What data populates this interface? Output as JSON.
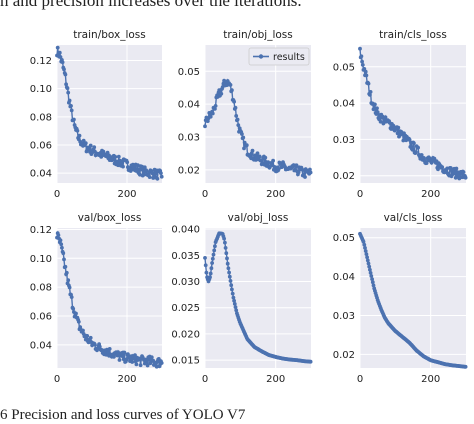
{
  "doc": {
    "top_text": "n and precision increases over the iterations.",
    "bottom_text": "6 Precision and loss curves of YOLO V7"
  },
  "colors": {
    "panel_bg": "#eaeaf2",
    "grid": "#ffffff",
    "series": "#4c72b0",
    "text": "#222222"
  },
  "chart_data": [
    {
      "type": "line",
      "title": "train/box_loss",
      "xlim": [
        0,
        300
      ],
      "ylim": [
        0.033,
        0.131
      ],
      "xticks": [
        0,
        200
      ],
      "yticks": [
        0.04,
        0.06,
        0.08,
        0.1,
        0.12
      ],
      "ytick_labels": [
        "0.04",
        "0.06",
        "0.08",
        "0.10",
        "0.12"
      ],
      "legend": null,
      "series": [
        {
          "noisy": true,
          "x": [
            0,
            8,
            16,
            24,
            32,
            40,
            50,
            60,
            70,
            80,
            95,
            110,
            130,
            150,
            170,
            190,
            210,
            230,
            250,
            270,
            290,
            299
          ],
          "y": [
            0.127,
            0.124,
            0.117,
            0.108,
            0.096,
            0.085,
            0.073,
            0.066,
            0.062,
            0.059,
            0.057,
            0.055,
            0.053,
            0.051,
            0.049,
            0.047,
            0.045,
            0.043,
            0.041,
            0.04,
            0.039,
            0.038
          ]
        }
      ]
    },
    {
      "type": "line",
      "title": "train/obj_loss",
      "xlim": [
        0,
        300
      ],
      "ylim": [
        0.016,
        0.058
      ],
      "xticks": [
        0,
        200
      ],
      "yticks": [
        0.02,
        0.03,
        0.04,
        0.05
      ],
      "ytick_labels": [
        "0.02",
        "0.03",
        "0.04",
        "0.05"
      ],
      "legend": {
        "label": "results",
        "position": "upper right"
      },
      "series": [
        {
          "noisy": true,
          "x": [
            0,
            10,
            20,
            30,
            40,
            50,
            60,
            70,
            80,
            90,
            100,
            110,
            120,
            140,
            160,
            180,
            200,
            220,
            240,
            260,
            280,
            299
          ],
          "y": [
            0.034,
            0.036,
            0.037,
            0.04,
            0.043,
            0.045,
            0.047,
            0.046,
            0.042,
            0.036,
            0.031,
            0.028,
            0.026,
            0.024,
            0.023,
            0.022,
            0.021,
            0.021,
            0.02,
            0.02,
            0.019,
            0.019
          ]
        }
      ]
    },
    {
      "type": "line",
      "title": "train/cls_loss",
      "xlim": [
        0,
        300
      ],
      "ylim": [
        0.018,
        0.056
      ],
      "xticks": [
        0,
        200
      ],
      "yticks": [
        0.02,
        0.03,
        0.04,
        0.05
      ],
      "ytick_labels": [
        "0.02",
        "0.03",
        "0.04",
        "0.05"
      ],
      "legend": null,
      "series": [
        {
          "noisy": true,
          "x": [
            0,
            10,
            20,
            30,
            40,
            50,
            60,
            70,
            80,
            90,
            100,
            120,
            140,
            160,
            180,
            200,
            220,
            240,
            260,
            280,
            299
          ],
          "y": [
            0.054,
            0.05,
            0.046,
            0.042,
            0.039,
            0.037,
            0.036,
            0.035,
            0.0345,
            0.034,
            0.033,
            0.031,
            0.029,
            0.027,
            0.025,
            0.024,
            0.023,
            0.022,
            0.021,
            0.0205,
            0.02
          ]
        }
      ]
    },
    {
      "type": "line",
      "title": "val/box_loss",
      "xlim": [
        0,
        300
      ],
      "ylim": [
        0.024,
        0.121
      ],
      "xticks": [
        0,
        200
      ],
      "yticks": [
        0.04,
        0.06,
        0.08,
        0.1,
        0.12
      ],
      "ytick_labels": [
        "0.04",
        "0.06",
        "0.08",
        "0.10",
        "0.12"
      ],
      "legend": null,
      "series": [
        {
          "noisy": true,
          "x": [
            0,
            10,
            20,
            30,
            40,
            50,
            60,
            70,
            80,
            100,
            120,
            140,
            160,
            180,
            200,
            220,
            240,
            260,
            280,
            299
          ],
          "y": [
            0.116,
            0.11,
            0.098,
            0.085,
            0.073,
            0.063,
            0.055,
            0.05,
            0.046,
            0.041,
            0.038,
            0.036,
            0.034,
            0.032,
            0.031,
            0.03,
            0.029,
            0.029,
            0.028,
            0.028
          ]
        }
      ]
    },
    {
      "type": "line",
      "title": "val/obj_loss",
      "xlim": [
        0,
        300
      ],
      "ylim": [
        0.0135,
        0.0402
      ],
      "xticks": [
        0,
        200
      ],
      "yticks": [
        0.015,
        0.02,
        0.025,
        0.03,
        0.035,
        0.04
      ],
      "ytick_labels": [
        "0.015",
        "0.020",
        "0.025",
        "0.030",
        "0.035",
        "0.040"
      ],
      "legend": null,
      "series": [
        {
          "noisy": false,
          "x": [
            0,
            5,
            10,
            15,
            20,
            30,
            40,
            50,
            55,
            60,
            65,
            70,
            80,
            90,
            100,
            120,
            140,
            160,
            180,
            200,
            220,
            240,
            260,
            280,
            299
          ],
          "y": [
            0.0345,
            0.031,
            0.03,
            0.031,
            0.0335,
            0.0375,
            0.0392,
            0.0391,
            0.038,
            0.0355,
            0.033,
            0.031,
            0.027,
            0.024,
            0.022,
            0.019,
            0.0175,
            0.0167,
            0.016,
            0.0156,
            0.0153,
            0.0151,
            0.015,
            0.0148,
            0.0147
          ]
        }
      ]
    },
    {
      "type": "line",
      "title": "val/cls_loss",
      "xlim": [
        0,
        300
      ],
      "ylim": [
        0.0165,
        0.0525
      ],
      "xticks": [
        0,
        200
      ],
      "yticks": [
        0.02,
        0.03,
        0.04,
        0.05
      ],
      "ytick_labels": [
        "0.02",
        "0.03",
        "0.04",
        "0.05"
      ],
      "legend": null,
      "series": [
        {
          "noisy": false,
          "x": [
            0,
            10,
            20,
            30,
            40,
            50,
            60,
            70,
            80,
            90,
            100,
            120,
            140,
            160,
            180,
            200,
            220,
            240,
            260,
            280,
            299
          ],
          "y": [
            0.051,
            0.049,
            0.045,
            0.041,
            0.037,
            0.034,
            0.0315,
            0.0295,
            0.028,
            0.027,
            0.026,
            0.0245,
            0.023,
            0.021,
            0.0195,
            0.0185,
            0.018,
            0.0175,
            0.0172,
            0.017,
            0.0168
          ]
        }
      ]
    }
  ]
}
